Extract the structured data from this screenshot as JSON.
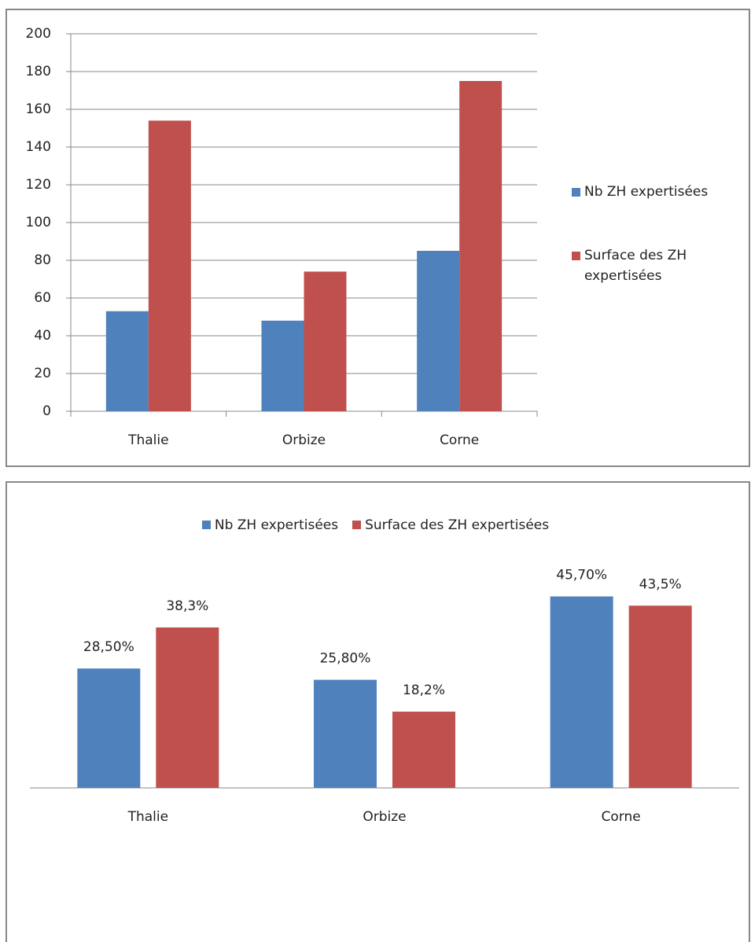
{
  "chart_data": [
    {
      "type": "bar",
      "categories": [
        "Thalie",
        "Orbize",
        "Corne"
      ],
      "series": [
        {
          "name": "Nb ZH expertisées",
          "color": "#4f81bd",
          "values": [
            53,
            48,
            85
          ]
        },
        {
          "name": "Surface des ZH expertisées",
          "color": "#c0504d",
          "values": [
            154,
            74,
            175
          ]
        }
      ],
      "ylim": [
        0,
        200
      ],
      "yticks": [
        0,
        20,
        40,
        60,
        80,
        100,
        120,
        140,
        160,
        180,
        200
      ],
      "grid": true,
      "legend": "right"
    },
    {
      "type": "bar",
      "categories": [
        "Thalie",
        "Orbize",
        "Corne"
      ],
      "series": [
        {
          "name": "Nb ZH expertisées",
          "color": "#4f81bd",
          "values": [
            28.5,
            25.8,
            45.7
          ],
          "value_labels": [
            "28,50%",
            "25,80%",
            "45,70%"
          ]
        },
        {
          "name": "Surface des ZH expertisées",
          "color": "#c0504d",
          "values": [
            38.3,
            18.2,
            43.5
          ],
          "value_labels": [
            "38,3%",
            "18,2%",
            "43,5%"
          ]
        }
      ],
      "ylim": [
        0,
        55
      ],
      "grid": false,
      "legend": "top"
    }
  ]
}
